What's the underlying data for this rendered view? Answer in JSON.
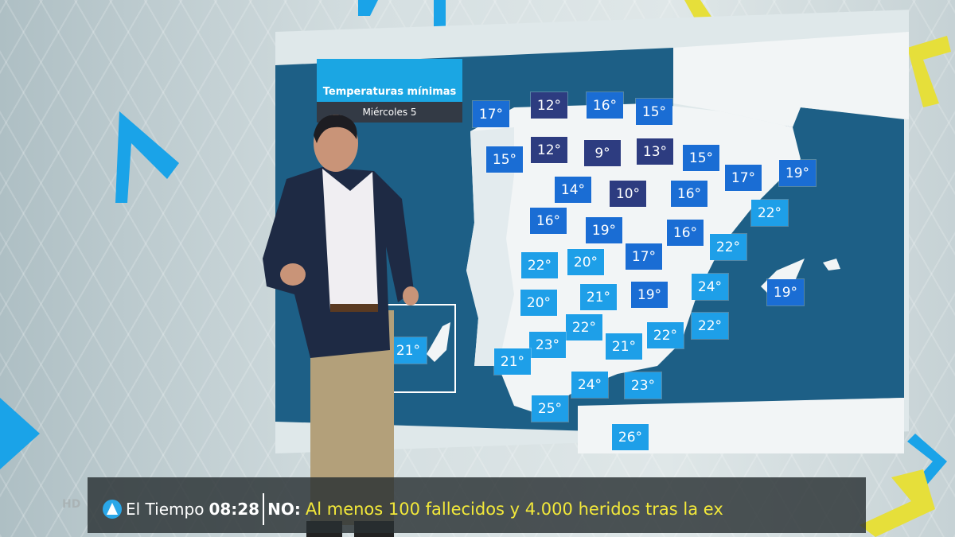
{
  "map": {
    "title": "Temperaturas mínimas",
    "subtitle": "Miércoles 5",
    "colors": {
      "sea": "#1d5f86",
      "land": "#f2f5f6",
      "portugal": "#e3ebee",
      "dark": "#2d3c80",
      "mid": "#1a6dd4",
      "light": "#1e9fe8"
    },
    "temperatures": [
      {
        "value": "17°",
        "tier": "mid"
      },
      {
        "value": "12°",
        "tier": "dark"
      },
      {
        "value": "16°",
        "tier": "mid"
      },
      {
        "value": "15°",
        "tier": "mid"
      },
      {
        "value": "15°",
        "tier": "mid"
      },
      {
        "value": "12°",
        "tier": "dark"
      },
      {
        "value": "9°",
        "tier": "dark"
      },
      {
        "value": "13°",
        "tier": "dark"
      },
      {
        "value": "15°",
        "tier": "mid"
      },
      {
        "value": "17°",
        "tier": "mid"
      },
      {
        "value": "19°",
        "tier": "mid"
      },
      {
        "value": "14°",
        "tier": "mid"
      },
      {
        "value": "10°",
        "tier": "dark"
      },
      {
        "value": "16°",
        "tier": "mid"
      },
      {
        "value": "22°",
        "tier": "light"
      },
      {
        "value": "16°",
        "tier": "mid"
      },
      {
        "value": "19°",
        "tier": "mid"
      },
      {
        "value": "16°",
        "tier": "mid"
      },
      {
        "value": "22°",
        "tier": "light"
      },
      {
        "value": "22°",
        "tier": "light"
      },
      {
        "value": "20°",
        "tier": "light"
      },
      {
        "value": "17°",
        "tier": "mid"
      },
      {
        "value": "24°",
        "tier": "light"
      },
      {
        "value": "19°",
        "tier": "mid"
      },
      {
        "value": "20°",
        "tier": "light"
      },
      {
        "value": "21°",
        "tier": "light"
      },
      {
        "value": "19°",
        "tier": "mid"
      },
      {
        "value": "22°",
        "tier": "light"
      },
      {
        "value": "22°",
        "tier": "light"
      },
      {
        "value": "22°",
        "tier": "light"
      },
      {
        "value": "23°",
        "tier": "light"
      },
      {
        "value": "21°",
        "tier": "light"
      },
      {
        "value": "21°",
        "tier": "light"
      },
      {
        "value": "21°",
        "tier": "light"
      },
      {
        "value": "24°",
        "tier": "light"
      },
      {
        "value": "23°",
        "tier": "light"
      },
      {
        "value": "25°",
        "tier": "light"
      },
      {
        "value": "26°",
        "tier": "light"
      }
    ]
  },
  "ticker": {
    "hd": "HD",
    "program": "El Tiempo",
    "time": "08:28",
    "prefix": "NO:",
    "headline": "Al menos 100 fallecidos y 4.000 heridos tras la ex"
  }
}
